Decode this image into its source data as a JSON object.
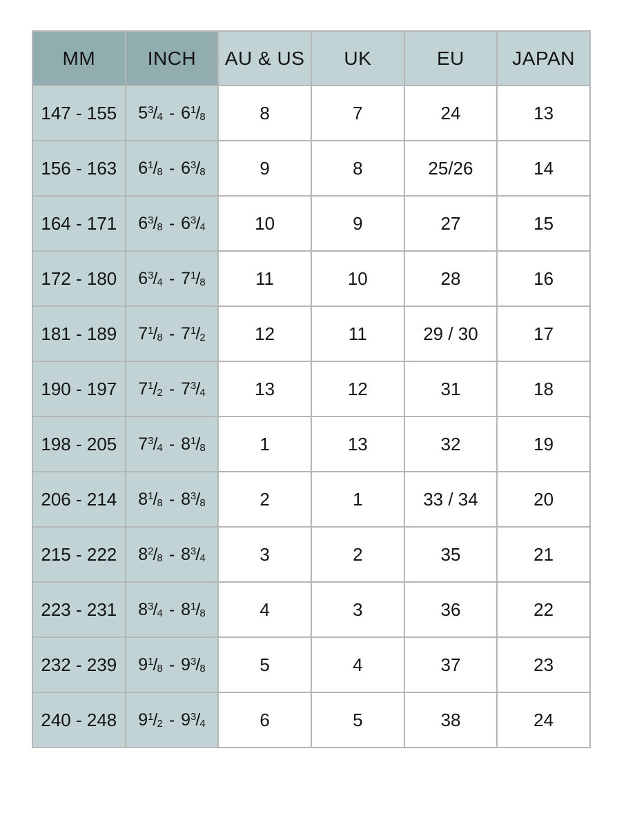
{
  "chart_data": {
    "type": "table",
    "columns": [
      "MM",
      "INCH",
      "AU & US",
      "UK",
      "EU",
      "JAPAN"
    ],
    "rows": [
      {
        "mm": "147 - 155",
        "inch": "5 3/4 - 6 1/8",
        "au_us": "8",
        "uk": "7",
        "eu": "24",
        "japan": "13"
      },
      {
        "mm": "156 - 163",
        "inch": "6 1/8 - 6 3/8",
        "au_us": "9",
        "uk": "8",
        "eu": "25/26",
        "japan": "14"
      },
      {
        "mm": "164 - 171",
        "inch": "6 3/8 - 6 3/4",
        "au_us": "10",
        "uk": "9",
        "eu": "27",
        "japan": "15"
      },
      {
        "mm": "172 - 180",
        "inch": "6 3/4 - 7 1/8",
        "au_us": "11",
        "uk": "10",
        "eu": "28",
        "japan": "16"
      },
      {
        "mm": "181 - 189",
        "inch": "7 1/8 - 7 1/2",
        "au_us": "12",
        "uk": "11",
        "eu": "29 / 30",
        "japan": "17"
      },
      {
        "mm": "190 - 197",
        "inch": "7 1/2 - 7 3/4",
        "au_us": "13",
        "uk": "12",
        "eu": "31",
        "japan": "18"
      },
      {
        "mm": "198 - 205",
        "inch": "7 3/4 - 8 1/8",
        "au_us": "1",
        "uk": "13",
        "eu": "32",
        "japan": "19"
      },
      {
        "mm": "206 - 214",
        "inch": "8 1/8 - 8 3/8",
        "au_us": "2",
        "uk": "1",
        "eu": "33 / 34",
        "japan": "20"
      },
      {
        "mm": "215 - 222",
        "inch": "8 2/8 - 8 3/4",
        "au_us": "3",
        "uk": "2",
        "eu": "35",
        "japan": "21"
      },
      {
        "mm": "223 - 231",
        "inch": "8 3/4 - 8 1/8",
        "au_us": "4",
        "uk": "3",
        "eu": "36",
        "japan": "22"
      },
      {
        "mm": "232 - 239",
        "inch": "9 1/8 - 9 3/8",
        "au_us": "5",
        "uk": "4",
        "eu": "37",
        "japan": "23"
      },
      {
        "mm": "240 - 248",
        "inch": "9 1/2 - 9 3/4",
        "au_us": "6",
        "uk": "5",
        "eu": "38",
        "japan": "24"
      }
    ]
  },
  "colors": {
    "header_dark_bg": "#91adaf",
    "header_light_bg": "#c2d3d5",
    "shaded_cell_bg": "#c2d3d5",
    "cell_bg": "#ffffff",
    "grid_border": "#b5b7b6",
    "text": "#141414"
  }
}
